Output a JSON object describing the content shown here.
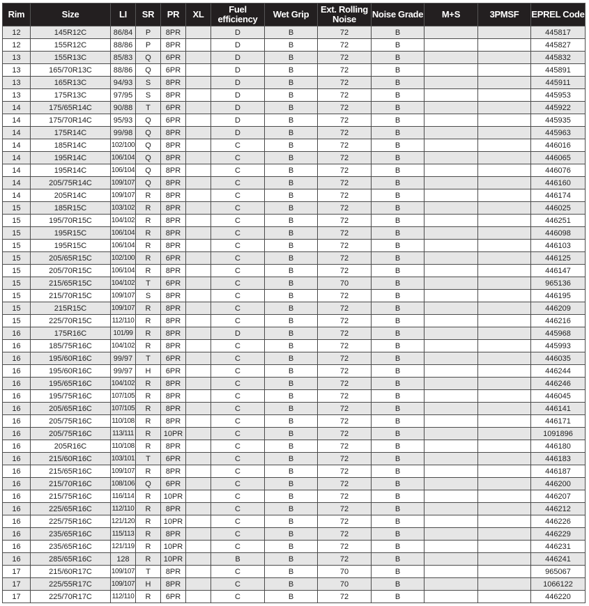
{
  "headers": [
    "Rim",
    "Size",
    "LI",
    "SR",
    "PR",
    "XL",
    "Fuel efficiency",
    "Wet Grip",
    "Ext. Rolling Noise",
    "Noise Grade",
    "M+S",
    "3PMSF",
    "EPREL Code"
  ],
  "rows": [
    [
      "12",
      "145R12C",
      "86/84",
      "P",
      "8PR",
      "",
      "D",
      "B",
      "72",
      "B",
      "",
      "",
      "445817"
    ],
    [
      "12",
      "155R12C",
      "88/86",
      "P",
      "8PR",
      "",
      "D",
      "B",
      "72",
      "B",
      "",
      "",
      "445827"
    ],
    [
      "13",
      "155R13C",
      "85/83",
      "Q",
      "6PR",
      "",
      "D",
      "B",
      "72",
      "B",
      "",
      "",
      "445832"
    ],
    [
      "13",
      "165/70R13C",
      "88/86",
      "Q",
      "6PR",
      "",
      "D",
      "B",
      "72",
      "B",
      "",
      "",
      "445891"
    ],
    [
      "13",
      "165R13C",
      "94/93",
      "S",
      "8PR",
      "",
      "D",
      "B",
      "72",
      "B",
      "",
      "",
      "445911"
    ],
    [
      "13",
      "175R13C",
      "97/95",
      "S",
      "8PR",
      "",
      "D",
      "B",
      "72",
      "B",
      "",
      "",
      "445953"
    ],
    [
      "14",
      "175/65R14C",
      "90/88",
      "T",
      "6PR",
      "",
      "D",
      "B",
      "72",
      "B",
      "",
      "",
      "445922"
    ],
    [
      "14",
      "175/70R14C",
      "95/93",
      "Q",
      "6PR",
      "",
      "D",
      "B",
      "72",
      "B",
      "",
      "",
      "445935"
    ],
    [
      "14",
      "175R14C",
      "99/98",
      "Q",
      "8PR",
      "",
      "D",
      "B",
      "72",
      "B",
      "",
      "",
      "445963"
    ],
    [
      "14",
      "185R14C",
      "102/100",
      "Q",
      "8PR",
      "",
      "C",
      "B",
      "72",
      "B",
      "",
      "",
      "446016"
    ],
    [
      "14",
      "195R14C",
      "106/104",
      "Q",
      "8PR",
      "",
      "C",
      "B",
      "72",
      "B",
      "",
      "",
      "446065"
    ],
    [
      "14",
      "195R14C",
      "106/104",
      "Q",
      "8PR",
      "",
      "C",
      "B",
      "72",
      "B",
      "",
      "",
      "446076"
    ],
    [
      "14",
      "205/75R14C",
      "109/107",
      "Q",
      "8PR",
      "",
      "C",
      "B",
      "72",
      "B",
      "",
      "",
      "446160"
    ],
    [
      "14",
      "205R14C",
      "109/107",
      "R",
      "8PR",
      "",
      "C",
      "B",
      "72",
      "B",
      "",
      "",
      "446174"
    ],
    [
      "15",
      "185R15C",
      "103/102",
      "R",
      "8PR",
      "",
      "C",
      "B",
      "72",
      "B",
      "",
      "",
      "446025"
    ],
    [
      "15",
      "195/70R15C",
      "104/102",
      "R",
      "8PR",
      "",
      "C",
      "B",
      "72",
      "B",
      "",
      "",
      "446251"
    ],
    [
      "15",
      "195R15C",
      "106/104",
      "R",
      "8PR",
      "",
      "C",
      "B",
      "72",
      "B",
      "",
      "",
      "446098"
    ],
    [
      "15",
      "195R15C",
      "106/104",
      "R",
      "8PR",
      "",
      "C",
      "B",
      "72",
      "B",
      "",
      "",
      "446103"
    ],
    [
      "15",
      "205/65R15C",
      "102/100",
      "R",
      "6PR",
      "",
      "C",
      "B",
      "72",
      "B",
      "",
      "",
      "446125"
    ],
    [
      "15",
      "205/70R15C",
      "106/104",
      "R",
      "8PR",
      "",
      "C",
      "B",
      "72",
      "B",
      "",
      "",
      "446147"
    ],
    [
      "15",
      "215/65R15C",
      "104/102",
      "T",
      "6PR",
      "",
      "C",
      "B",
      "70",
      "B",
      "",
      "",
      "965136"
    ],
    [
      "15",
      "215/70R15C",
      "109/107",
      "S",
      "8PR",
      "",
      "C",
      "B",
      "72",
      "B",
      "",
      "",
      "446195"
    ],
    [
      "15",
      "215R15C",
      "109/107",
      "R",
      "8PR",
      "",
      "C",
      "B",
      "72",
      "B",
      "",
      "",
      "446209"
    ],
    [
      "15",
      "225/70R15C",
      "112/110",
      "R",
      "8PR",
      "",
      "C",
      "B",
      "72",
      "B",
      "",
      "",
      "446216"
    ],
    [
      "16",
      "175R16C",
      "101/99",
      "R",
      "8PR",
      "",
      "D",
      "B",
      "72",
      "B",
      "",
      "",
      "445968"
    ],
    [
      "16",
      "185/75R16C",
      "104/102",
      "R",
      "8PR",
      "",
      "C",
      "B",
      "72",
      "B",
      "",
      "",
      "445993"
    ],
    [
      "16",
      "195/60R16C",
      "99/97",
      "T",
      "6PR",
      "",
      "C",
      "B",
      "72",
      "B",
      "",
      "",
      "446035"
    ],
    [
      "16",
      "195/60R16C",
      "99/97",
      "H",
      "6PR",
      "",
      "C",
      "B",
      "72",
      "B",
      "",
      "",
      "446244"
    ],
    [
      "16",
      "195/65R16C",
      "104/102",
      "R",
      "8PR",
      "",
      "C",
      "B",
      "72",
      "B",
      "",
      "",
      "446246"
    ],
    [
      "16",
      "195/75R16C",
      "107/105",
      "R",
      "8PR",
      "",
      "C",
      "B",
      "72",
      "B",
      "",
      "",
      "446045"
    ],
    [
      "16",
      "205/65R16C",
      "107/105",
      "R",
      "8PR",
      "",
      "C",
      "B",
      "72",
      "B",
      "",
      "",
      "446141"
    ],
    [
      "16",
      "205/75R16C",
      "110/108",
      "R",
      "8PR",
      "",
      "C",
      "B",
      "72",
      "B",
      "",
      "",
      "446171"
    ],
    [
      "16",
      "205/75R16C",
      "113/111",
      "R",
      "10PR",
      "",
      "C",
      "B",
      "72",
      "B",
      "",
      "",
      "1091896"
    ],
    [
      "16",
      "205R16C",
      "110/108",
      "R",
      "8PR",
      "",
      "C",
      "B",
      "72",
      "B",
      "",
      "",
      "446180"
    ],
    [
      "16",
      "215/60R16C",
      "103/101",
      "T",
      "6PR",
      "",
      "C",
      "B",
      "72",
      "B",
      "",
      "",
      "446183"
    ],
    [
      "16",
      "215/65R16C",
      "109/107",
      "R",
      "8PR",
      "",
      "C",
      "B",
      "72",
      "B",
      "",
      "",
      "446187"
    ],
    [
      "16",
      "215/70R16C",
      "108/106",
      "Q",
      "6PR",
      "",
      "C",
      "B",
      "72",
      "B",
      "",
      "",
      "446200"
    ],
    [
      "16",
      "215/75R16C",
      "116/114",
      "R",
      "10PR",
      "",
      "C",
      "B",
      "72",
      "B",
      "",
      "",
      "446207"
    ],
    [
      "16",
      "225/65R16C",
      "112/110",
      "R",
      "8PR",
      "",
      "C",
      "B",
      "72",
      "B",
      "",
      "",
      "446212"
    ],
    [
      "16",
      "225/75R16C",
      "121/120",
      "R",
      "10PR",
      "",
      "C",
      "B",
      "72",
      "B",
      "",
      "",
      "446226"
    ],
    [
      "16",
      "235/65R16C",
      "115/113",
      "R",
      "8PR",
      "",
      "C",
      "B",
      "72",
      "B",
      "",
      "",
      "446229"
    ],
    [
      "16",
      "235/65R16C",
      "121/119",
      "R",
      "10PR",
      "",
      "C",
      "B",
      "72",
      "B",
      "",
      "",
      "446231"
    ],
    [
      "16",
      "285/65R16C",
      "128",
      "R",
      "10PR",
      "",
      "B",
      "B",
      "72",
      "B",
      "",
      "",
      "446241"
    ],
    [
      "17",
      "215/60R17C",
      "109/107",
      "T",
      "8PR",
      "",
      "C",
      "B",
      "70",
      "B",
      "",
      "",
      "965067"
    ],
    [
      "17",
      "225/55R17C",
      "109/107",
      "H",
      "8PR",
      "",
      "C",
      "B",
      "70",
      "B",
      "",
      "",
      "1066122"
    ],
    [
      "17",
      "225/70R17C",
      "112/110",
      "R",
      "6PR",
      "",
      "C",
      "B",
      "72",
      "B",
      "",
      "",
      "446220"
    ]
  ]
}
